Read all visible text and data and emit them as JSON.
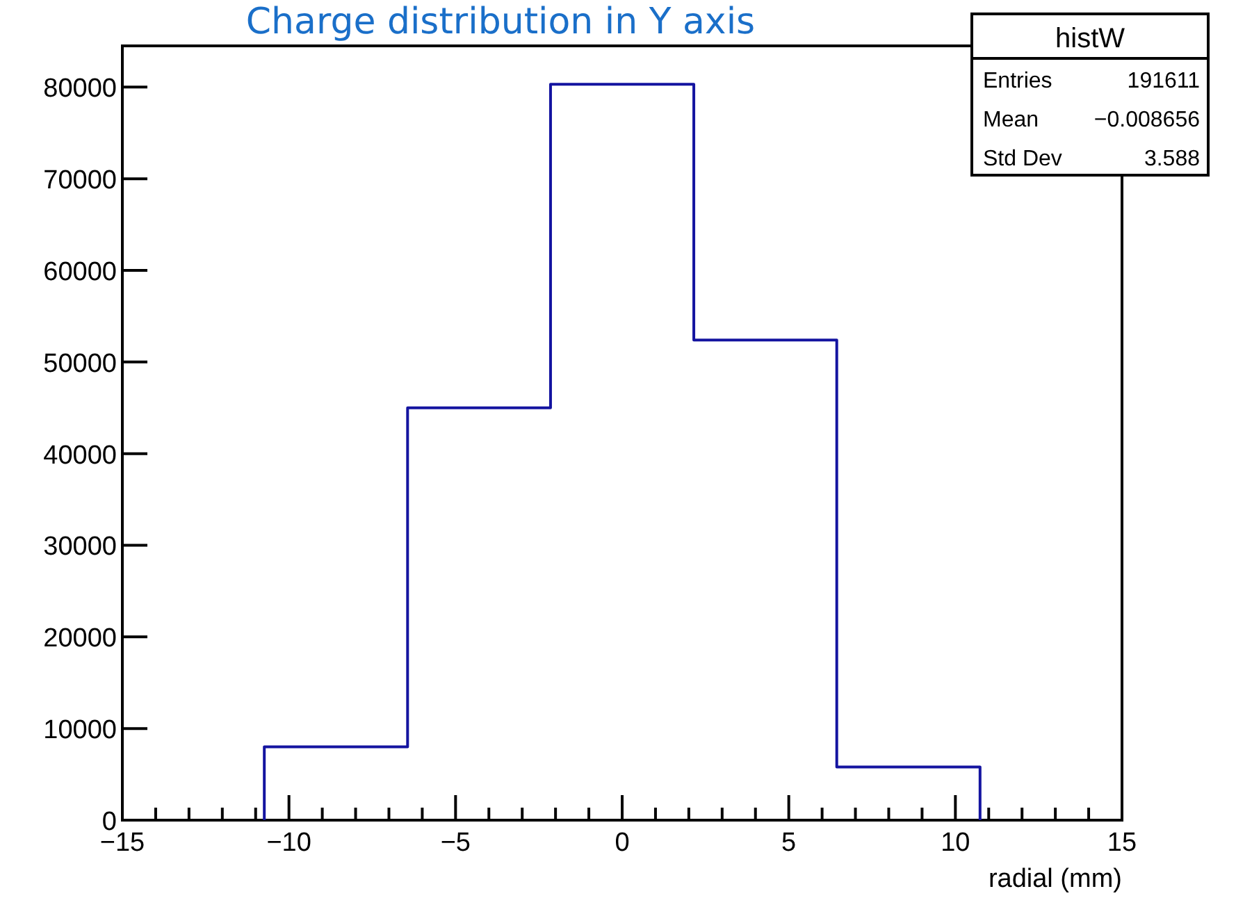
{
  "chart_data": {
    "type": "histogram",
    "title": "Charge distribution in Y axis",
    "xlabel": "radial (mm)",
    "bins": [
      -10.74,
      -6.44,
      -2.15,
      2.15,
      6.44,
      10.74
    ],
    "values": [
      8000,
      45000,
      80300,
      52400,
      5800
    ],
    "color": "#1414a0",
    "xlim": [
      -15,
      15
    ],
    "xticks": [
      -15,
      {
        "value": -14,
        "label": null
      },
      {
        "value": -13,
        "label": null
      },
      {
        "value": -12,
        "label": null
      },
      {
        "value": -11,
        "label": null
      },
      -10,
      {
        "value": -9,
        "label": null
      },
      {
        "value": -8,
        "label": null
      },
      {
        "value": -7,
        "label": null
      },
      {
        "value": -6,
        "label": null
      },
      -5,
      {
        "value": -4,
        "label": null
      },
      {
        "value": -3,
        "label": null
      },
      {
        "value": -2,
        "label": null
      },
      {
        "value": -1,
        "label": null
      },
      0,
      {
        "value": 1,
        "label": null
      },
      {
        "value": 2,
        "label": null
      },
      {
        "value": 3,
        "label": null
      },
      {
        "value": 4,
        "label": null
      },
      5,
      {
        "value": 6,
        "label": null
      },
      {
        "value": 7,
        "label": null
      },
      {
        "value": 8,
        "label": null
      },
      {
        "value": 9,
        "label": null
      },
      10,
      {
        "value": 11,
        "label": null
      },
      {
        "value": 12,
        "label": null
      },
      {
        "value": 13,
        "label": null
      },
      {
        "value": 14,
        "label": null
      },
      15
    ],
    "ylim": [
      0,
      84500
    ],
    "yticks": [
      0,
      10000,
      20000,
      30000,
      40000,
      50000,
      60000,
      70000,
      80000
    ],
    "annotations": [
      "histW",
      "Entries",
      "191611",
      "Mean",
      "−0.008656",
      "Std Dev",
      "3.588"
    ],
    "grid": false
  }
}
